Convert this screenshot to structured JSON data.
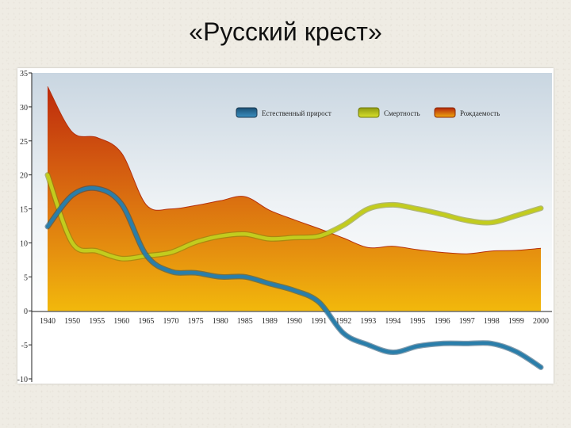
{
  "title": "«Русский крест»",
  "chart_data": {
    "type": "area",
    "categories": [
      "1940",
      "1950",
      "1955",
      "1960",
      "1965",
      "1970",
      "1975",
      "1980",
      "1985",
      "1989",
      "1990",
      "1991",
      "1992",
      "1993",
      "1994",
      "1995",
      "1996",
      "1997",
      "1998",
      "1999",
      "2000"
    ],
    "series": [
      {
        "name": "Рождаемость",
        "kind": "area",
        "color": "#c43a0e",
        "values": [
          33,
          26.3,
          25.5,
          23.2,
          15.6,
          15,
          15.5,
          16.2,
          16.8,
          14.8,
          13.4,
          12.1,
          10.7,
          9.3,
          9.5,
          9,
          8.6,
          8.4,
          8.8,
          8.9,
          9.2
        ]
      },
      {
        "name": "Смертность",
        "kind": "line",
        "color": "#c2cc1e",
        "values": [
          20,
          10,
          8.8,
          7.7,
          8.1,
          8.6,
          10.1,
          11,
          11.3,
          10.6,
          10.8,
          11,
          12.6,
          15,
          15.6,
          15,
          14.2,
          13.3,
          13,
          14,
          15.1
        ]
      },
      {
        "name": "Естественный прирост",
        "kind": "line",
        "color": "#2a7eaa",
        "values": [
          12.4,
          17,
          18,
          15.7,
          8.2,
          5.8,
          5.6,
          5,
          5,
          4,
          3,
          1.3,
          -3.3,
          -5,
          -6.1,
          -5.2,
          -4.8,
          -4.8,
          -4.8,
          -6,
          -8.3
        ]
      }
    ],
    "y_ticks": [
      "35",
      "30",
      "25",
      "20",
      "15",
      "10",
      "5",
      "0",
      "-5",
      "-10"
    ],
    "ylim": [
      -10,
      35
    ],
    "legend": "top-right",
    "grid": false
  }
}
